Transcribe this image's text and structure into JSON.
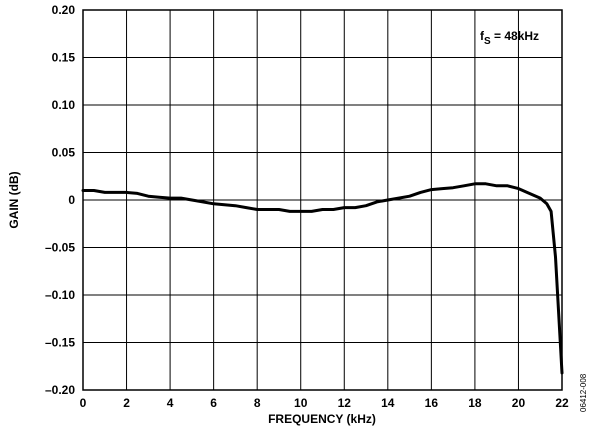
{
  "chart_data": {
    "type": "line",
    "xlabel": "FREQUENCY (kHz)",
    "ylabel": "GAIN (dB)",
    "xlim": [
      0,
      22
    ],
    "ylim": [
      -0.2,
      0.2
    ],
    "x_ticks": [
      "0",
      "2",
      "4",
      "6",
      "8",
      "10",
      "12",
      "14",
      "16",
      "18",
      "20",
      "22"
    ],
    "y_ticks": [
      "0.20",
      "0.15",
      "0.10",
      "0.05",
      "0",
      "–0.05",
      "–0.10",
      "–0.15",
      "–0.20"
    ],
    "grid": true,
    "annotation": {
      "main": "f",
      "sub": "S",
      "rest": " = 48kHz"
    },
    "series": [
      {
        "color": "#000000",
        "x": [
          0,
          0.5,
          1,
          1.5,
          2,
          2.5,
          3,
          3.5,
          4,
          4.5,
          5,
          5.5,
          6,
          6.5,
          7,
          7.5,
          8,
          8.5,
          9,
          9.5,
          10,
          10.5,
          11,
          11.5,
          12,
          12.5,
          13,
          13.5,
          14,
          14.5,
          15,
          15.5,
          16,
          16.5,
          17,
          17.5,
          18,
          18.5,
          19,
          19.5,
          20,
          20.5,
          21,
          21.3,
          21.5,
          21.7,
          21.85,
          22
        ],
        "y": [
          0.01,
          0.01,
          0.008,
          0.008,
          0.008,
          0.007,
          0.004,
          0.003,
          0.002,
          0.002,
          0.0,
          -0.002,
          -0.004,
          -0.005,
          -0.006,
          -0.008,
          -0.01,
          -0.01,
          -0.01,
          -0.012,
          -0.012,
          -0.012,
          -0.01,
          -0.01,
          -0.008,
          -0.008,
          -0.006,
          -0.002,
          0.0,
          0.002,
          0.004,
          0.008,
          0.011,
          0.012,
          0.013,
          0.015,
          0.017,
          0.017,
          0.015,
          0.015,
          0.012,
          0.007,
          0.002,
          -0.004,
          -0.012,
          -0.06,
          -0.12,
          -0.182
        ]
      }
    ]
  },
  "figure_id": "06412-008"
}
